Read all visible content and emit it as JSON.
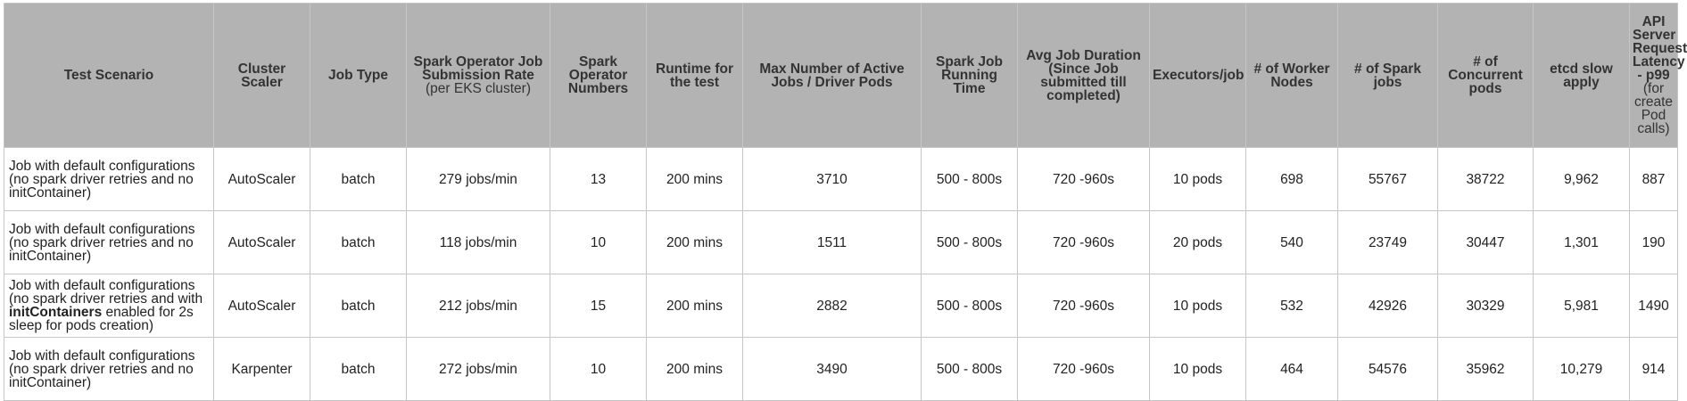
{
  "headers": [
    {
      "main": "Test Scenario",
      "sub": ""
    },
    {
      "main": "Cluster Scaler",
      "sub": ""
    },
    {
      "main": "Job Type",
      "sub": ""
    },
    {
      "main": "Spark Operator Job Submission Rate",
      "sub": "(per EKS cluster)"
    },
    {
      "main": "Spark Operator Numbers",
      "sub": ""
    },
    {
      "main": "Runtime for the test",
      "sub": ""
    },
    {
      "main": "Max Number of Active Jobs / Driver Pods",
      "sub": ""
    },
    {
      "main": "Spark Job Running Time",
      "sub": ""
    },
    {
      "main": "Avg Job Duration (Since Job submitted till completed)",
      "sub": ""
    },
    {
      "main": "Executors/job",
      "sub": ""
    },
    {
      "main": "# of Worker Nodes",
      "sub": ""
    },
    {
      "main": "# of Spark jobs",
      "sub": ""
    },
    {
      "main": "# of Concurrent pods",
      "sub": ""
    },
    {
      "main": "etcd slow apply",
      "sub": ""
    },
    {
      "main": "API Server Request Latency - p99",
      "sub": "(for create Pod calls)"
    }
  ],
  "rows": [
    {
      "scenario": {
        "pre": "Job with default configurations (no spark driver retries and no initContainer)",
        "bold": "",
        "post": ""
      },
      "cells": [
        "AutoScaler",
        "batch",
        "279 jobs/min",
        "13",
        "200 mins",
        "3710",
        "500 - 800s",
        "720 -960s",
        "10 pods",
        "698",
        "55767",
        "38722",
        "9,962",
        "887"
      ]
    },
    {
      "scenario": {
        "pre": "Job with default configurations (no spark driver retries and no initContainer)",
        "bold": "",
        "post": ""
      },
      "cells": [
        "AutoScaler",
        "batch",
        "118 jobs/min",
        "10",
        "200 mins",
        "1511",
        "500 - 800s",
        "720 -960s",
        "20 pods",
        "540",
        "23749",
        "30447",
        "1,301",
        "190"
      ]
    },
    {
      "scenario": {
        "pre": "Job with default configurations (no spark driver retries and with ",
        "bold": "initContainers",
        "post": " enabled for 2s sleep for pods creation)"
      },
      "cells": [
        "AutoScaler",
        "batch",
        "212 jobs/min",
        "15",
        "200 mins",
        "2882",
        "500 - 800s",
        "720 -960s",
        "10 pods",
        "532",
        "42926",
        "30329",
        "5,981",
        "1490"
      ]
    },
    {
      "scenario": {
        "pre": "Job with default configurations (no spark driver retries and no initContainer)",
        "bold": "",
        "post": ""
      },
      "cells": [
        "Karpenter",
        "batch",
        "272 jobs/min",
        "10",
        "200 mins",
        "3490",
        "500 - 800s",
        "720 -960s",
        "10 pods",
        "464",
        "54576",
        "35962",
        "10,279",
        "914"
      ]
    }
  ]
}
